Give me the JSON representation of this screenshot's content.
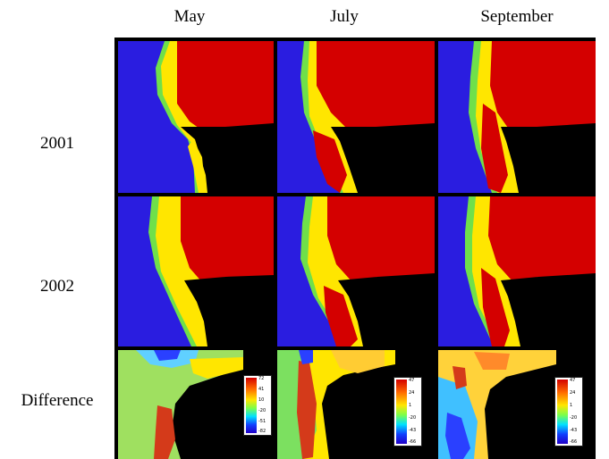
{
  "columns": [
    "May",
    "July",
    "September"
  ],
  "rows": [
    "2001",
    "2002",
    "Difference"
  ],
  "colorbars": {
    "may": [
      "72",
      "41",
      "10",
      "-20",
      "-51",
      "-82"
    ],
    "july": [
      "47",
      "24",
      "1",
      "-20",
      "-43",
      "-66"
    ],
    "september": [
      "47",
      "24",
      "1",
      "-20",
      "-43",
      "-66"
    ]
  },
  "colors": {
    "ocean_low": "#2a1de0",
    "high": "#d40000",
    "mid": "#ffe600",
    "transition": "#6fe04a",
    "land": "#000000"
  }
}
